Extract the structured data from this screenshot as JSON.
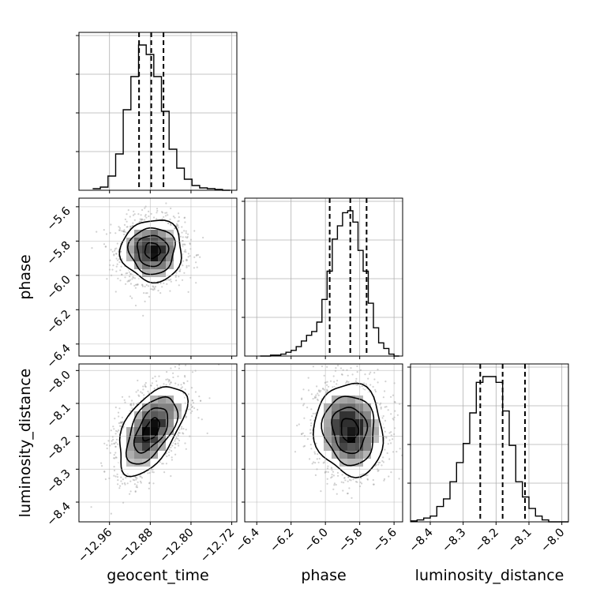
{
  "chart_data": {
    "type": "corner",
    "parameters": [
      "geocent_time",
      "phase",
      "luminosity_distance"
    ],
    "axis_labels": {
      "bottom": [
        "geocent_time",
        "phase",
        "luminosity_distance"
      ],
      "left": [
        "phase",
        "luminosity_distance"
      ]
    },
    "ranges": {
      "geocent_time": [
        -13.02,
        -12.71
      ],
      "phase": [
        -6.47,
        -5.55
      ],
      "luminosity_distance": [
        -8.46,
        -7.98
      ]
    },
    "ticks": {
      "geocent_time": {
        "values": [
          -12.96,
          -12.88,
          -12.8,
          -12.72
        ],
        "labels": [
          "−12.96",
          "−12.88",
          "−12.80",
          "−12.72"
        ]
      },
      "phase": {
        "values": [
          -6.4,
          -6.2,
          -6.0,
          -5.8,
          -5.6
        ],
        "labels": [
          "−6.4",
          "−6.2",
          "−6.0",
          "−5.8",
          "−5.6"
        ]
      },
      "luminosity_distance": {
        "values": [
          -8.4,
          -8.3,
          -8.2,
          -8.1,
          -8.0
        ],
        "labels": [
          "−8.4",
          "−8.3",
          "−8.2",
          "−8.1",
          "−8.0"
        ]
      }
    },
    "quantiles": {
      "geocent_time": [
        -12.902,
        -12.878,
        -12.854
      ],
      "phase": [
        -5.975,
        -5.855,
        -5.76
      ],
      "luminosity_distance": [
        -8.248,
        -8.18,
        -8.112
      ]
    },
    "histograms": {
      "geocent_time": {
        "edges": [
          -12.993,
          -12.978,
          -12.963,
          -12.948,
          -12.933,
          -12.918,
          -12.903,
          -12.888,
          -12.873,
          -12.858,
          -12.843,
          -12.828,
          -12.813,
          -12.798,
          -12.783,
          -12.768,
          -12.753,
          -12.738,
          -12.723
        ],
        "counts": [
          0.01,
          0.02,
          0.09,
          0.23,
          0.51,
          0.72,
          0.92,
          0.86,
          0.72,
          0.5,
          0.26,
          0.14,
          0.07,
          0.03,
          0.015,
          0.01,
          0.005,
          0.0
        ]
      },
      "phase": {
        "edges": [
          -6.38,
          -6.35,
          -6.32,
          -6.29,
          -6.26,
          -6.23,
          -6.2,
          -6.17,
          -6.14,
          -6.11,
          -6.08,
          -6.05,
          -6.02,
          -5.99,
          -5.96,
          -5.93,
          -5.9,
          -5.87,
          -5.84,
          -5.81,
          -5.78,
          -5.75,
          -5.72,
          -5.69,
          -5.66,
          -5.63,
          -5.6,
          -5.57
        ],
        "counts": [
          0.0,
          0.0,
          0.005,
          0.005,
          0.01,
          0.02,
          0.03,
          0.05,
          0.08,
          0.11,
          0.13,
          0.18,
          0.3,
          0.45,
          0.62,
          0.69,
          0.76,
          0.77,
          0.71,
          0.56,
          0.45,
          0.28,
          0.15,
          0.07,
          0.04,
          0.01,
          0.0
        ]
      },
      "luminosity_distance": {
        "edges": [
          -8.46,
          -8.44,
          -8.42,
          -8.4,
          -8.38,
          -8.36,
          -8.34,
          -8.32,
          -8.3,
          -8.28,
          -8.26,
          -8.24,
          -8.22,
          -8.2,
          -8.18,
          -8.16,
          -8.14,
          -8.12,
          -8.1,
          -8.08,
          -8.06,
          -8.04,
          -8.02,
          -8.0,
          -7.98
        ],
        "counts": [
          0.005,
          0.01,
          0.02,
          0.03,
          0.08,
          0.12,
          0.21,
          0.31,
          0.41,
          0.57,
          0.73,
          0.76,
          0.76,
          0.73,
          0.58,
          0.4,
          0.21,
          0.13,
          0.07,
          0.03,
          0.01,
          0.0,
          0.0,
          0.0
        ]
      }
    },
    "pairs": [
      {
        "x": "geocent_time",
        "y": "phase",
        "center": [
          -12.876,
          -5.855
        ],
        "sigma": [
          0.03,
          0.09
        ],
        "rho": 0.0,
        "n_scatter": 1600
      },
      {
        "x": "geocent_time",
        "y": "luminosity_distance",
        "center": [
          -12.878,
          -8.18
        ],
        "sigma": [
          0.033,
          0.068
        ],
        "rho": 0.55,
        "n_scatter": 1600
      },
      {
        "x": "phase",
        "y": "luminosity_distance",
        "center": [
          -5.86,
          -8.18
        ],
        "sigma": [
          0.1,
          0.07
        ],
        "rho": -0.08,
        "n_scatter": 1600
      }
    ],
    "contour_levels_sigma": [
      0.5,
      1.0,
      1.5,
      2.0
    ],
    "grid": true,
    "colors": {
      "line": "#000000",
      "density": "#000000",
      "scatter": "#9a9a9a",
      "grid": "#b0b0b0"
    }
  }
}
